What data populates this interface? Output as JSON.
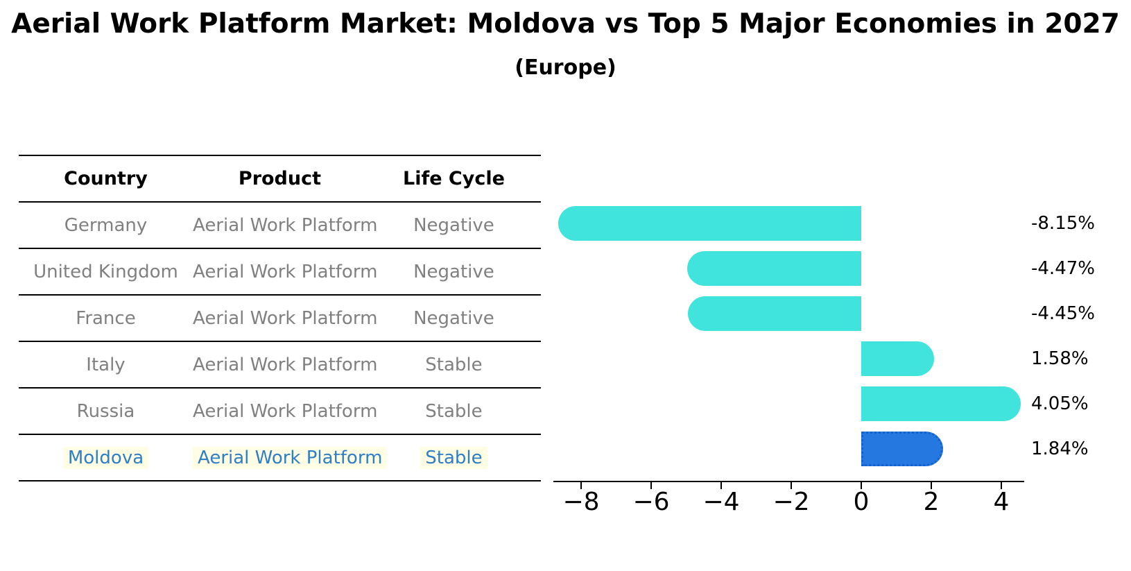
{
  "title": "Aerial Work Platform Market: Moldova vs Top 5 Major Economies in 2027",
  "subtitle": "(Europe)",
  "table": {
    "headers": [
      "Country",
      "Product",
      "Life Cycle"
    ],
    "rows": [
      {
        "country": "Germany",
        "product": "Aerial Work Platform",
        "life_cycle": "Negative",
        "highlight": false
      },
      {
        "country": "United Kingdom",
        "product": "Aerial Work Platform",
        "life_cycle": "Negative",
        "highlight": false
      },
      {
        "country": "France",
        "product": "Aerial Work Platform",
        "life_cycle": "Negative",
        "highlight": false
      },
      {
        "country": "Italy",
        "product": "Aerial Work Platform",
        "life_cycle": "Stable",
        "highlight": false
      },
      {
        "country": "Russia",
        "product": "Aerial Work Platform",
        "life_cycle": "Stable",
        "highlight": false
      },
      {
        "country": "Moldova",
        "product": "Aerial Work Platform",
        "life_cycle": "Stable",
        "highlight": true
      }
    ]
  },
  "chart_data": {
    "type": "bar",
    "orientation": "horizontal",
    "title": "Aerial Work Platform Market: Moldova vs Top 5 Major Economies in 2027 (Europe)",
    "categories": [
      "Germany",
      "United Kingdom",
      "France",
      "Italy",
      "Russia",
      "Moldova"
    ],
    "values": [
      -8.15,
      -4.47,
      -4.45,
      1.58,
      4.05,
      1.84
    ],
    "value_labels": [
      "-8.15%",
      "-4.47%",
      "-4.45%",
      "1.58%",
      "4.05%",
      "1.84%"
    ],
    "x_ticks": [
      -8,
      -6,
      -4,
      -2,
      0,
      2,
      4
    ],
    "x_tick_labels": [
      "−8",
      "−6",
      "−4",
      "−2",
      "0",
      "2",
      "4"
    ],
    "xlim": [
      -8.8,
      4.65
    ],
    "grid": false,
    "highlight_category": "Moldova"
  },
  "colors": {
    "bar": "#40E4DC",
    "highlight_bar": "#2478DF",
    "highlight_bar_border": "#1560CC",
    "value_label": "#000000",
    "table_text": "#808080",
    "table_header_text": "#000000",
    "highlight_text": "#2E7EC8",
    "highlight_text_bg": "#FFFDE3",
    "axis": "#000000"
  }
}
